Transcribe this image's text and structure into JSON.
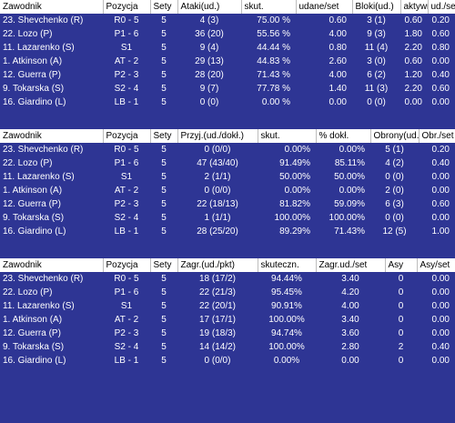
{
  "attack": {
    "headers": [
      "Zawodnik",
      "Pozycja",
      "Sety",
      "Ataki(ud.)",
      "skut.",
      "udane/set",
      "Bloki(ud.)",
      "aktywn.",
      "ud./set"
    ],
    "rows": [
      [
        "23. Shevchenko (R)",
        "R0 - 5",
        "5",
        "4 (3)",
        "75.00 %",
        "0.60",
        "3 (1)",
        "0.60",
        "0.20"
      ],
      [
        "22. Lozo (P)",
        "P1 - 6",
        "5",
        "36 (20)",
        "55.56 %",
        "4.00",
        "9 (3)",
        "1.80",
        "0.60"
      ],
      [
        "11. Lazarenko (S)",
        "S1",
        "5",
        "9 (4)",
        "44.44 %",
        "0.80",
        "11 (4)",
        "2.20",
        "0.80"
      ],
      [
        "1. Atkinson (A)",
        "AT - 2",
        "5",
        "29 (13)",
        "44.83 %",
        "2.60",
        "3 (0)",
        "0.60",
        "0.00"
      ],
      [
        "12. Guerra (P)",
        "P2 - 3",
        "5",
        "28 (20)",
        "71.43 %",
        "4.00",
        "6 (2)",
        "1.20",
        "0.40"
      ],
      [
        "9. Tokarska (S)",
        "S2 - 4",
        "5",
        "9 (7)",
        "77.78 %",
        "1.40",
        "11 (3)",
        "2.20",
        "0.60"
      ],
      [
        "16. Giardino (L)",
        "LB - 1",
        "5",
        "0 (0)",
        "0.00 %",
        "0.00",
        "0 (0)",
        "0.00",
        "0.00"
      ]
    ]
  },
  "reception": {
    "headers": [
      "Zawodnik",
      "Pozycja",
      "Sety",
      "Przyj.(ud./dokł.)",
      "skut.",
      "% dokł.",
      "Obrony(ud.)",
      "Obr./set"
    ],
    "rows": [
      [
        "23. Shevchenko (R)",
        "R0 - 5",
        "5",
        "0 (0/0)",
        "0.00%",
        "0.00%",
        "5 (1)",
        "0.20"
      ],
      [
        "22. Lozo (P)",
        "P1 - 6",
        "5",
        "47 (43/40)",
        "91.49%",
        "85.11%",
        "4 (2)",
        "0.40"
      ],
      [
        "11. Lazarenko (S)",
        "S1",
        "5",
        "2 (1/1)",
        "50.00%",
        "50.00%",
        "0 (0)",
        "0.00"
      ],
      [
        "1. Atkinson (A)",
        "AT - 2",
        "5",
        "0 (0/0)",
        "0.00%",
        "0.00%",
        "2 (0)",
        "0.00"
      ],
      [
        "12. Guerra (P)",
        "P2 - 3",
        "5",
        "22 (18/13)",
        "81.82%",
        "59.09%",
        "6 (3)",
        "0.60"
      ],
      [
        "9. Tokarska (S)",
        "S2 - 4",
        "5",
        "1 (1/1)",
        "100.00%",
        "100.00%",
        "0 (0)",
        "0.00"
      ],
      [
        "16. Giardino (L)",
        "LB - 1",
        "5",
        "28 (25/20)",
        "89.29%",
        "71.43%",
        "12 (5)",
        "1.00"
      ]
    ]
  },
  "serve": {
    "headers": [
      "Zawodnik",
      "Pozycja",
      "Sety",
      "Zagr.(ud./pkt)",
      "skuteczn.",
      "Zagr.ud./set",
      "Asy",
      "Asy/set"
    ],
    "rows": [
      [
        "23. Shevchenko (R)",
        "R0 - 5",
        "5",
        "18 (17/2)",
        "94.44%",
        "3.40",
        "0",
        "0.00"
      ],
      [
        "22. Lozo (P)",
        "P1 - 6",
        "5",
        "22 (21/3)",
        "95.45%",
        "4.20",
        "0",
        "0.00"
      ],
      [
        "11. Lazarenko (S)",
        "S1",
        "5",
        "22 (20/1)",
        "90.91%",
        "4.00",
        "0",
        "0.00"
      ],
      [
        "1. Atkinson (A)",
        "AT - 2",
        "5",
        "17 (17/1)",
        "100.00%",
        "3.40",
        "0",
        "0.00"
      ],
      [
        "12. Guerra (P)",
        "P2 - 3",
        "5",
        "19 (18/3)",
        "94.74%",
        "3.60",
        "0",
        "0.00"
      ],
      [
        "9. Tokarska (S)",
        "S2 - 4",
        "5",
        "14 (14/2)",
        "100.00%",
        "2.80",
        "2",
        "0.40"
      ],
      [
        "16. Giardino (L)",
        "LB - 1",
        "5",
        "0 (0/0)",
        "0.00%",
        "0.00",
        "0",
        "0.00"
      ]
    ]
  }
}
